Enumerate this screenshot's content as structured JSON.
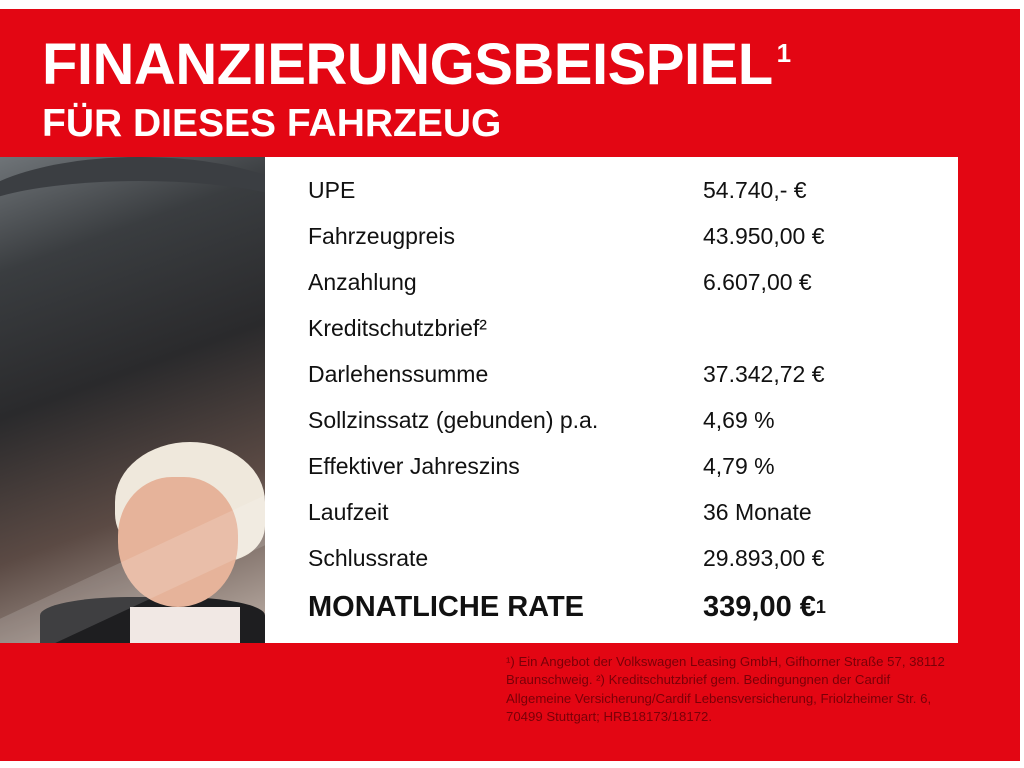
{
  "header": {
    "title": "FINANZIERUNGSBEISPIEL",
    "title_footnote": "1",
    "subtitle": "FÜR DIESES FAHRZEUG"
  },
  "colors": {
    "brand_red": "#e30613",
    "panel": "#ffffff"
  },
  "image": {
    "description_icon": "woman-in-car-photo"
  },
  "rows": [
    {
      "label": "UPE",
      "value": "54.740,- €"
    },
    {
      "label": "Fahrzeugpreis",
      "value": "43.950,00 €"
    },
    {
      "label": "Anzahlung",
      "value": "6.607,00 €"
    },
    {
      "label": "Kreditschutzbrief²",
      "value": ""
    },
    {
      "label": "Darlehenssumme",
      "value": "37.342,72 €"
    },
    {
      "label": "Sollzinssatz (gebunden) p.a.",
      "value": "4,69 %"
    },
    {
      "label": "Effektiver Jahreszins",
      "value": "4,79 %"
    },
    {
      "label": "Laufzeit",
      "value": "36 Monate"
    },
    {
      "label": "Schlussrate",
      "value": "29.893,00 €"
    }
  ],
  "total": {
    "label": "MONATLICHE RATE",
    "value": "339,00 €",
    "footnote": "1"
  },
  "footnote": "¹) Ein Angebot der Volkswagen Leasing GmbH, Gifhorner Straße 57, 38112 Braunschweig. ²) Kreditschutzbrief gem. Bedingungnen der Cardif Allgemeine Versicherung/Cardif Lebensversicherung, Friolzheimer Str. 6, 70499 Stuttgart; HRB18173/18172."
}
